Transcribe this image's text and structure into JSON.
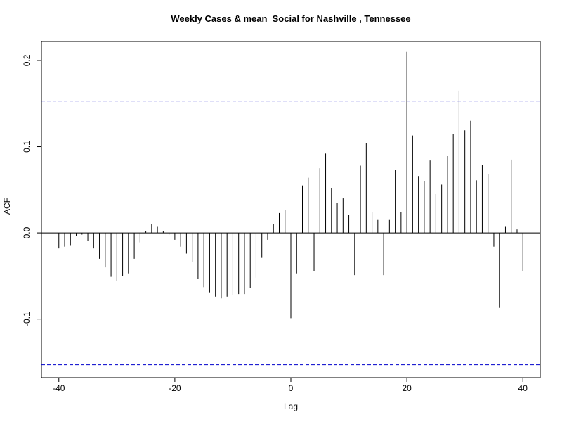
{
  "chart_data": {
    "type": "bar",
    "title": "Weekly Cases & mean_Social for Nashville , Tennessee",
    "xlabel": "Lag",
    "ylabel": "ACF",
    "xlim": [
      -43,
      43
    ],
    "ylim": [
      -0.168,
      0.222
    ],
    "x_ticks": [
      -40,
      -20,
      0,
      20,
      40
    ],
    "x_tick_labels": [
      "-40",
      "-20",
      "0",
      "20",
      "40"
    ],
    "y_ticks": [
      -0.1,
      0.0,
      0.1,
      0.2
    ],
    "y_tick_labels": [
      "-0.1",
      "0.0",
      "0.1",
      "0.2"
    ],
    "confidence_bounds": [
      0.153,
      -0.153
    ],
    "bound_color": "#0000cc",
    "bar_color": "#000000",
    "grid": false,
    "lags": [
      -40,
      -39,
      -38,
      -37,
      -36,
      -35,
      -34,
      -33,
      -32,
      -31,
      -30,
      -29,
      -28,
      -27,
      -26,
      -25,
      -24,
      -23,
      -22,
      -21,
      -20,
      -19,
      -18,
      -17,
      -16,
      -15,
      -14,
      -13,
      -12,
      -11,
      -10,
      -9,
      -8,
      -7,
      -6,
      -5,
      -4,
      -3,
      -2,
      -1,
      0,
      1,
      2,
      3,
      4,
      5,
      6,
      7,
      8,
      9,
      10,
      11,
      12,
      13,
      14,
      15,
      16,
      17,
      18,
      19,
      20,
      21,
      22,
      23,
      24,
      25,
      26,
      27,
      28,
      29,
      30,
      31,
      32,
      33,
      34,
      35,
      36,
      37,
      38,
      39,
      40
    ],
    "values": [
      -0.018,
      -0.016,
      -0.015,
      -0.004,
      -0.002,
      -0.009,
      -0.018,
      -0.03,
      -0.04,
      -0.051,
      -0.056,
      -0.05,
      -0.047,
      -0.03,
      -0.011,
      0.002,
      0.01,
      0.007,
      0.002,
      -0.002,
      -0.008,
      -0.016,
      -0.024,
      -0.034,
      -0.053,
      -0.063,
      -0.069,
      -0.074,
      -0.076,
      -0.074,
      -0.072,
      -0.071,
      -0.071,
      -0.064,
      -0.052,
      -0.029,
      -0.008,
      0.01,
      0.023,
      0.027,
      -0.099,
      -0.047,
      0.055,
      0.064,
      -0.044,
      0.075,
      0.092,
      0.052,
      0.035,
      0.04,
      0.021,
      -0.049,
      0.078,
      0.104,
      0.024,
      0.015,
      -0.049,
      0.015,
      0.073,
      0.024,
      0.21,
      0.113,
      0.066,
      0.06,
      0.084,
      0.045,
      0.056,
      0.089,
      0.115,
      0.165,
      0.119,
      0.13,
      0.061,
      0.079,
      0.068,
      -0.016,
      -0.087,
      0.007,
      0.085,
      0.004,
      -0.044
    ]
  }
}
